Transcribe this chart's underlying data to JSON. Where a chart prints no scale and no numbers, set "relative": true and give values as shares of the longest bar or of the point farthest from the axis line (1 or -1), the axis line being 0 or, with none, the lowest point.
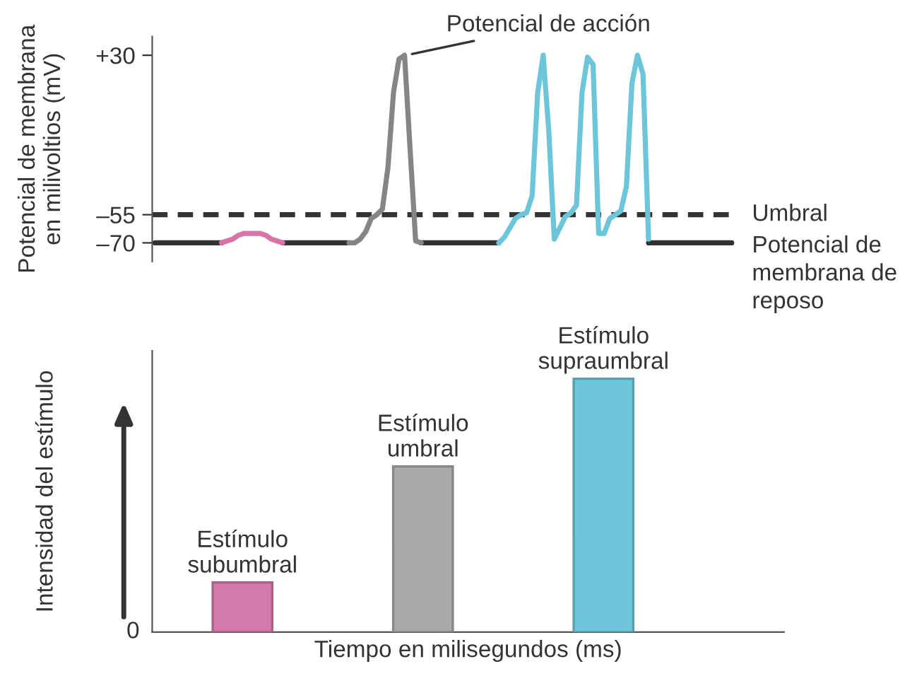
{
  "chart_data": [
    {
      "type": "line",
      "ylabel": "Potencial de membrana\nen milivoltios (mV)",
      "categories": [
        null,
        null,
        null,
        null,
        null,
        null,
        null,
        null,
        null,
        null,
        null,
        null,
        null,
        null,
        null,
        null,
        null,
        null,
        null,
        null,
        null,
        null,
        null,
        null,
        null,
        null,
        null,
        null,
        null,
        null,
        null,
        null,
        null,
        null,
        null,
        null,
        null,
        null,
        null,
        null,
        null,
        null,
        null,
        null,
        null,
        null,
        null,
        null,
        null,
        null,
        null,
        null,
        null,
        null,
        null,
        null,
        null,
        null,
        null,
        null,
        null,
        null,
        null,
        null,
        null,
        null,
        null,
        null,
        null,
        null,
        null,
        null,
        null,
        null,
        null,
        null,
        null,
        null,
        null,
        null,
        null,
        null,
        null,
        null,
        null,
        null,
        null,
        null,
        null,
        null,
        null,
        null,
        null,
        null,
        null,
        null,
        null,
        null,
        null,
        null,
        null,
        null,
        null,
        null,
        null
      ],
      "series": [
        {
          "color": "#333333",
          "values": [
            -70,
            -70,
            -70,
            -70,
            -70,
            -70,
            -70,
            -70,
            -70,
            -70,
            -70,
            -70,
            -70,
            null,
            null,
            null,
            null,
            null,
            null,
            null,
            null,
            null,
            null,
            -70,
            -70,
            -70,
            -70,
            -70,
            -70,
            -70,
            -70,
            -70,
            -70,
            -70,
            -70,
            -70,
            null,
            null,
            null,
            null,
            null,
            null,
            null,
            null,
            null,
            null,
            null,
            null,
            -70,
            -70,
            -70,
            -70,
            -70,
            -70,
            -70,
            -70,
            -70,
            -70,
            -70,
            -70,
            -70,
            -70,
            -70,
            null,
            null,
            null,
            null,
            null,
            null,
            null,
            null,
            null,
            null,
            null,
            null,
            null,
            null,
            null,
            null,
            null,
            null,
            null,
            null,
            null,
            null,
            null,
            null,
            null,
            null,
            -70,
            -70,
            -70,
            -70,
            -70,
            -70,
            -70,
            -70,
            -70,
            -70,
            -70,
            -70,
            -70,
            -70,
            -70,
            -70
          ]
        },
        {
          "color": "#d873a8",
          "values": [
            null,
            null,
            null,
            null,
            null,
            null,
            null,
            null,
            null,
            null,
            null,
            null,
            -70,
            -69,
            -68,
            -66,
            -65,
            -65,
            -65,
            -65,
            -66,
            -68,
            -69,
            -70,
            null,
            null,
            null,
            null,
            null,
            null,
            null,
            null,
            null,
            null,
            null,
            null,
            null,
            null,
            null,
            null,
            null,
            null,
            null,
            null,
            null,
            null,
            null,
            null,
            null,
            null,
            null,
            null,
            null,
            null,
            null,
            null,
            null,
            null,
            null,
            null,
            null,
            null,
            null,
            null,
            null,
            null,
            null,
            null,
            null,
            null,
            null,
            null,
            null,
            null,
            null,
            null,
            null,
            null,
            null,
            null,
            null,
            null,
            null,
            null,
            null,
            null,
            null,
            null,
            null,
            null,
            null,
            null,
            null,
            null,
            null,
            null,
            null,
            null,
            null,
            null,
            null,
            null,
            null,
            null,
            null
          ]
        },
        {
          "color": "#858585",
          "values": [
            null,
            null,
            null,
            null,
            null,
            null,
            null,
            null,
            null,
            null,
            null,
            null,
            null,
            null,
            null,
            null,
            null,
            null,
            null,
            null,
            null,
            null,
            null,
            null,
            null,
            null,
            null,
            null,
            null,
            null,
            null,
            null,
            null,
            null,
            null,
            -70,
            -70,
            -68,
            -64,
            -57,
            -55,
            -52,
            -30,
            10,
            28,
            30,
            -20,
            -69,
            -70,
            null,
            null,
            null,
            null,
            null,
            null,
            null,
            null,
            null,
            null,
            null,
            null,
            null,
            null,
            null,
            null,
            null,
            null,
            null,
            null,
            null,
            null,
            null,
            null,
            null,
            null,
            null,
            null,
            null,
            null,
            null,
            null,
            null,
            null,
            null,
            null,
            null,
            null,
            null,
            null,
            null,
            null,
            null,
            null,
            null,
            null,
            null,
            null,
            null,
            null,
            null,
            null,
            null,
            null,
            null,
            null
          ]
        },
        {
          "color": "#6cc5d9",
          "values": [
            null,
            null,
            null,
            null,
            null,
            null,
            null,
            null,
            null,
            null,
            null,
            null,
            null,
            null,
            null,
            null,
            null,
            null,
            null,
            null,
            null,
            null,
            null,
            null,
            null,
            null,
            null,
            null,
            null,
            null,
            null,
            null,
            null,
            null,
            null,
            null,
            null,
            null,
            null,
            null,
            null,
            null,
            null,
            null,
            null,
            null,
            null,
            null,
            null,
            null,
            null,
            null,
            null,
            null,
            null,
            null,
            null,
            null,
            null,
            null,
            null,
            null,
            -70,
            -67,
            -62,
            -57,
            -55,
            -54,
            -45,
            10,
            30,
            -10,
            -68,
            -62,
            -56,
            -54,
            -50,
            10,
            29,
            25,
            -65,
            -65,
            -57,
            -55,
            -53,
            -40,
            15,
            30,
            20,
            -68,
            null,
            null,
            null,
            null,
            null,
            null,
            null,
            null,
            null,
            null,
            null,
            null,
            null,
            null,
            null
          ]
        }
      ],
      "ylim": [
        -80,
        40
      ],
      "yticks": [
        {
          "value": 30,
          "label": "+30"
        },
        {
          "value": -55,
          "label": "–55"
        },
        {
          "value": -70,
          "label": "–70"
        }
      ],
      "ref_lines": [
        {
          "axis": "y",
          "value": -55,
          "label": "Umbral",
          "color": "#333333",
          "line_style": "dashed"
        }
      ],
      "annotations": [
        "Potencial de acción",
        "Potencial de\nmembrana de\nreposo"
      ],
      "tick_labels": "y"
    },
    {
      "type": "bar",
      "xlabel": "Tiempo en milisegundos (ms)",
      "ylabel": "Intensidad del estímulo",
      "categories": [
        "Estímulo\nsubumbral",
        "Estímulo\numbral",
        "Estímulo\nsupraumbral"
      ],
      "values": [
        0.196,
        0.654,
        1
      ],
      "colors": [
        "#d47aab",
        "#a9a9a9",
        "#6ec6da"
      ],
      "relative": true,
      "annotations": [
        "0"
      ],
      "tick_labels": false
    }
  ]
}
